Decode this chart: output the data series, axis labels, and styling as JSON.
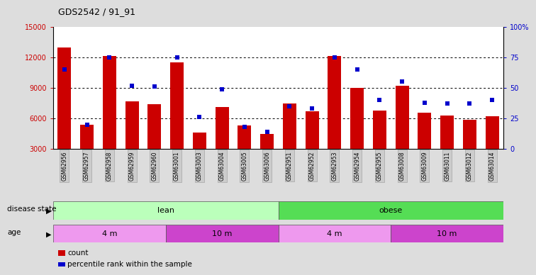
{
  "title": "GDS2542 / 91_91",
  "samples": [
    "GSM62956",
    "GSM62957",
    "GSM62958",
    "GSM62959",
    "GSM62960",
    "GSM63001",
    "GSM63003",
    "GSM63004",
    "GSM63005",
    "GSM63006",
    "GSM62951",
    "GSM62952",
    "GSM62953",
    "GSM62954",
    "GSM62955",
    "GSM63008",
    "GSM63009",
    "GSM63011",
    "GSM63012",
    "GSM63014"
  ],
  "counts": [
    13000,
    5400,
    12100,
    7700,
    7400,
    11500,
    4600,
    7100,
    5300,
    4500,
    7500,
    6700,
    12100,
    9000,
    6800,
    9200,
    6600,
    6300,
    5900,
    6200
  ],
  "percentiles": [
    65,
    20,
    75,
    52,
    51,
    75,
    26,
    49,
    18,
    14,
    35,
    33,
    75,
    65,
    40,
    55,
    38,
    37,
    37,
    40
  ],
  "bar_color": "#cc0000",
  "dot_color": "#0000cc",
  "ylim_left": [
    3000,
    15000
  ],
  "ylim_right": [
    0,
    100
  ],
  "yticks_left": [
    3000,
    6000,
    9000,
    12000,
    15000
  ],
  "yticks_right": [
    0,
    25,
    50,
    75,
    100
  ],
  "ytick_labels_right": [
    "0",
    "25",
    "50",
    "75",
    "100%"
  ],
  "disease_state_groups": [
    {
      "label": "lean",
      "start": 0,
      "end": 10,
      "color": "#bbffbb"
    },
    {
      "label": "obese",
      "start": 10,
      "end": 20,
      "color": "#55dd55"
    }
  ],
  "age_groups": [
    {
      "label": "4 m",
      "start": 0,
      "end": 5,
      "color": "#ee99ee"
    },
    {
      "label": "10 m",
      "start": 5,
      "end": 10,
      "color": "#cc44cc"
    },
    {
      "label": "4 m",
      "start": 10,
      "end": 15,
      "color": "#ee99ee"
    },
    {
      "label": "10 m",
      "start": 15,
      "end": 20,
      "color": "#cc44cc"
    }
  ],
  "bg_color": "#dddddd",
  "plot_bg": "#ffffff",
  "xtick_bg": "#cccccc",
  "tick_color_left": "#cc0000",
  "tick_color_right": "#0000cc",
  "grid_dotted_vals": [
    6000,
    9000,
    12000
  ],
  "bar_width": 0.6,
  "dot_size": 16
}
